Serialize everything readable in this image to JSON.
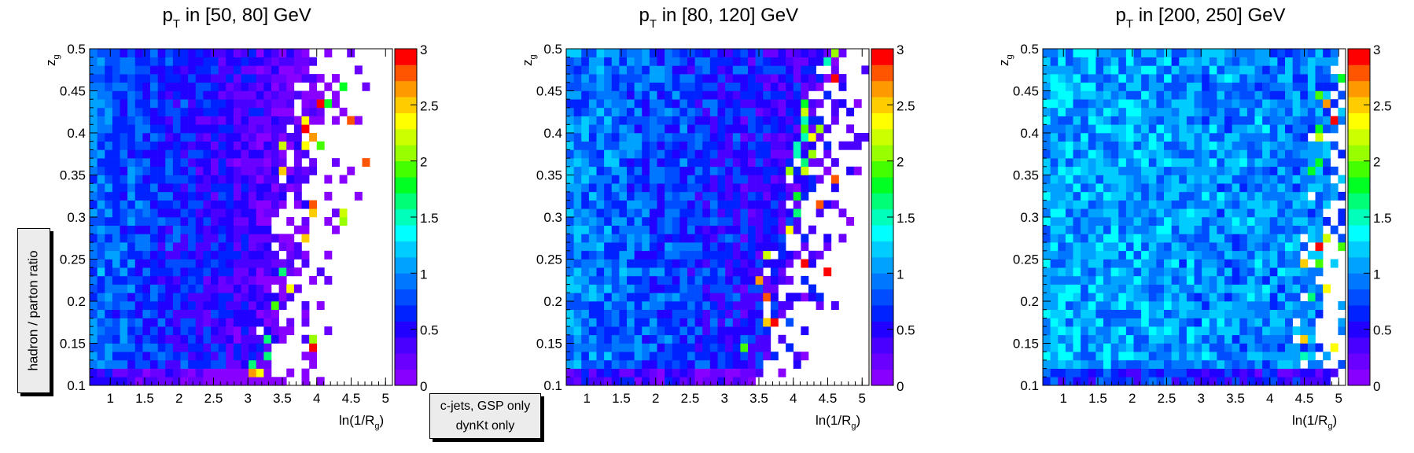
{
  "side_label": "hadron / parton ratio",
  "legend_box": {
    "line1": "c-jets, GSP only",
    "line2": "dynKt only"
  },
  "colors": {
    "palette": [
      "#8800ff",
      "#6a00ff",
      "#4a00ff",
      "#2200ff",
      "#0022ff",
      "#004cff",
      "#0077ff",
      "#00a2ff",
      "#00ccff",
      "#00ffff",
      "#00ffbb",
      "#00ff77",
      "#00ff22",
      "#44ff00",
      "#99ff00",
      "#ccff00",
      "#ffff00",
      "#ffcc00",
      "#ff9900",
      "#ff5500",
      "#ff0000"
    ]
  },
  "chart_data": [
    {
      "type": "heatmap",
      "title_main": "p",
      "title_sub": "T",
      "title_rest": " in [50, 80] GeV",
      "xlabel_main": "ln(1/R",
      "xlabel_sub": "g",
      "xlabel_end": ")",
      "ylabel_main": "z",
      "ylabel_sub": "g",
      "xlim": [
        0.7,
        5.1
      ],
      "ylim": [
        0.1,
        0.5
      ],
      "zlim": [
        0,
        3
      ],
      "x_ticks": [
        "1",
        "1.5",
        "2",
        "2.5",
        "3",
        "3.5",
        "4",
        "4.5",
        "5"
      ],
      "y_ticks": [
        "0.1",
        "0.15",
        "0.2",
        "0.25",
        "0.3",
        "0.35",
        "0.4",
        "0.45",
        "0.5"
      ],
      "z_ticks": [
        "0",
        "0.5",
        "1",
        "1.5",
        "2",
        "2.5",
        "3"
      ],
      "bins": {
        "nx": 40,
        "ny": 40
      },
      "pattern": {
        "seed": 11,
        "edge_at_low_y": 3.3,
        "edge_at_high_y": 4.1,
        "base": 0.85,
        "slope": 0.24,
        "noise": 0.55
      }
    },
    {
      "type": "heatmap",
      "title_main": "p",
      "title_sub": "T",
      "title_rest": " in [80, 120] GeV",
      "xlabel_main": "ln(1/R",
      "xlabel_sub": "g",
      "xlabel_end": ")",
      "ylabel_main": "z",
      "ylabel_sub": "g",
      "xlim": [
        0.7,
        5.1
      ],
      "ylim": [
        0.1,
        0.5
      ],
      "zlim": [
        0,
        3
      ],
      "x_ticks": [
        "1",
        "1.5",
        "2",
        "2.5",
        "3",
        "3.5",
        "4",
        "4.5",
        "5"
      ],
      "y_ticks": [
        "0.1",
        "0.15",
        "0.2",
        "0.25",
        "0.3",
        "0.35",
        "0.4",
        "0.45",
        "0.5"
      ],
      "z_ticks": [
        "0",
        "0.5",
        "1",
        "1.5",
        "2",
        "2.5",
        "3"
      ],
      "bins": {
        "nx": 40,
        "ny": 40
      },
      "pattern": {
        "seed": 23,
        "edge_at_low_y": 3.5,
        "edge_at_high_y": 4.7,
        "base": 0.95,
        "slope": 0.17,
        "noise": 0.6
      }
    },
    {
      "type": "heatmap",
      "title_main": "p",
      "title_sub": "T",
      "title_rest": " in [200, 250] GeV",
      "xlabel_main": "ln(1/R",
      "xlabel_sub": "g",
      "xlabel_end": ")",
      "ylabel_main": "z",
      "ylabel_sub": "g",
      "xlim": [
        0.7,
        5.1
      ],
      "ylim": [
        0.1,
        0.5
      ],
      "zlim": [
        0,
        3
      ],
      "x_ticks": [
        "1",
        "1.5",
        "2",
        "2.5",
        "3",
        "3.5",
        "4",
        "4.5",
        "5"
      ],
      "y_ticks": [
        "0.1",
        "0.15",
        "0.2",
        "0.25",
        "0.3",
        "0.35",
        "0.4",
        "0.45",
        "0.5"
      ],
      "z_ticks": [
        "0",
        "0.5",
        "1",
        "1.5",
        "2",
        "2.5",
        "3"
      ],
      "bins": {
        "nx": 40,
        "ny": 40
      },
      "pattern": {
        "seed": 37,
        "edge_at_low_y": 4.6,
        "edge_at_high_y": 5.0,
        "base": 1.1,
        "slope": 0.04,
        "noise": 0.65
      }
    }
  ]
}
